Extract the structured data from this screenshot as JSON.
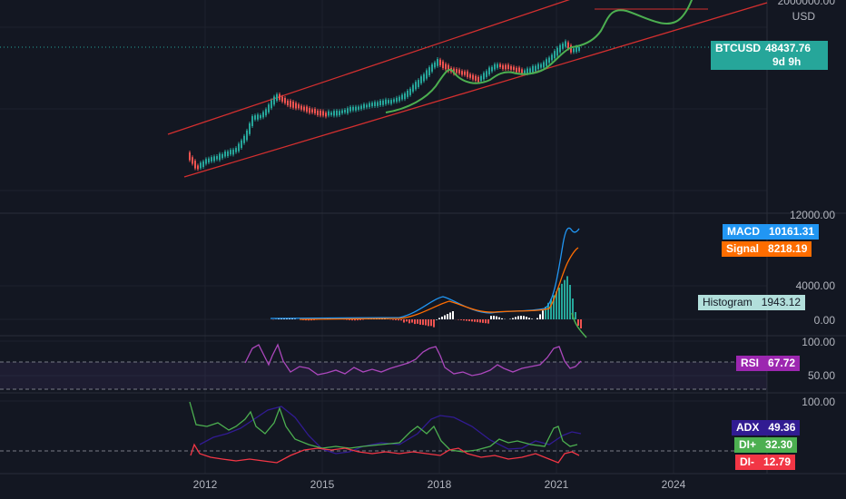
{
  "symbol": "BTCUSD",
  "currency": "USD",
  "last_price": "48437.76",
  "countdown": "9d 9h",
  "colors": {
    "up": "#26a69a",
    "down": "#ef5350",
    "macd": "#2196f3",
    "signal": "#ff6d00",
    "rsi": "#ab47bc",
    "adx": "#311b92",
    "di_plus": "#4caf50",
    "di_minus": "#f23645",
    "projection": "#4caf50",
    "channel": "#d32f2f"
  },
  "chart_data": [
    {
      "type": "candlestick",
      "name": "BTCUSD",
      "x_ticks": [
        "2012",
        "2015",
        "2018",
        "2021",
        "2024"
      ],
      "y_ticks": [
        "2000000.00"
      ],
      "y_scale": "log",
      "last": 48437.76
    },
    {
      "type": "line",
      "name": "MACD",
      "y_ticks": [
        "12000.00",
        "4000.00",
        "0.00"
      ],
      "series": [
        {
          "name": "MACD",
          "last": "10161.31"
        },
        {
          "name": "Signal",
          "last": "8218.19"
        },
        {
          "name": "Histogram",
          "last": "1943.12"
        }
      ]
    },
    {
      "type": "line",
      "name": "RSI",
      "y_ticks": [
        "100.00",
        "50.00"
      ],
      "series": [
        {
          "name": "RSI",
          "last": "67.72"
        }
      ]
    },
    {
      "type": "line",
      "name": "ADX",
      "y_ticks": [
        "100.00"
      ],
      "series": [
        {
          "name": "ADX",
          "last": "49.36"
        },
        {
          "name": "DI+",
          "last": "32.30"
        },
        {
          "name": "DI-",
          "last": "12.79"
        }
      ]
    }
  ]
}
